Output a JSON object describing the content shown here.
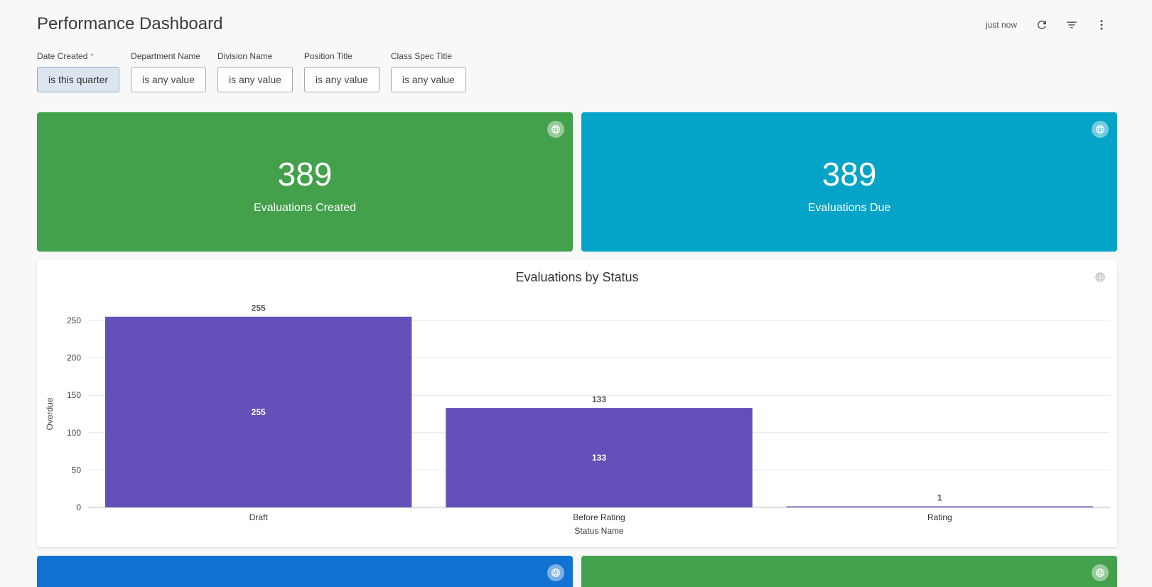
{
  "header": {
    "title": "Performance Dashboard",
    "refreshed": "just now"
  },
  "filters": [
    {
      "label": "Date Created",
      "required": "*",
      "value": "is this quarter"
    },
    {
      "label": "Department Name",
      "value": "is any value"
    },
    {
      "label": "Division Name",
      "value": "is any value"
    },
    {
      "label": "Position Title",
      "value": "is any value"
    },
    {
      "label": "Class Spec Title",
      "value": "is any value"
    }
  ],
  "tiles": [
    {
      "value": "389",
      "label": "Evaluations Created",
      "color": "#43a04b"
    },
    {
      "value": "389",
      "label": "Evaluations Due",
      "color": "#04a4c8"
    },
    {
      "value": "",
      "label": "",
      "color": "#1272d1"
    },
    {
      "value": "",
      "label": "",
      "color": "#43a04b"
    }
  ],
  "colors": {
    "bar": "#6550b9",
    "grid": "#e6e6e6"
  },
  "chart_data": {
    "type": "bar",
    "title": "Evaluations by Status",
    "xlabel": "Status Name",
    "ylabel": "Overdue",
    "categories": [
      "Draft",
      "Before Rating",
      "Rating"
    ],
    "values": [
      255,
      133,
      1
    ],
    "ylim": [
      0,
      250
    ],
    "yticks": [
      0,
      50,
      100,
      150,
      200,
      250
    ],
    "grid": true
  }
}
